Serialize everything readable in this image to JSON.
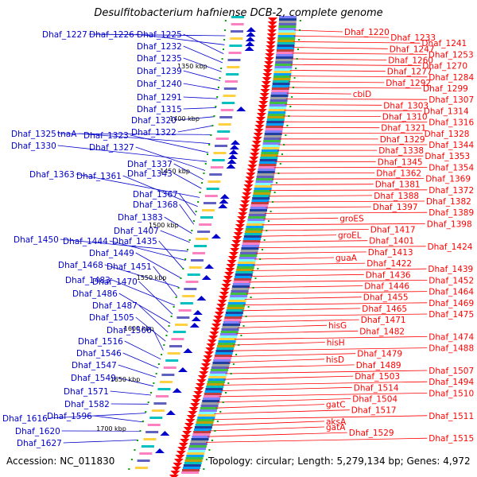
{
  "title": "Desulfitobacterium hafniense DCB-2, complete genome",
  "accession_text": "Accession: NC_011830",
  "topology_text": "Topology: circular; Length: 5,279,134 bp; Genes: 4,972",
  "colors": {
    "left_strand": "#0000cc",
    "right_strand": "#ff0000",
    "backbone": "#808080",
    "tick": "#00a000"
  },
  "kbp_markers": [
    "1350 kbp",
    "1400 kbp",
    "1450 kbp",
    "1500 kbp",
    "1550 kbp",
    "1600 kbp",
    "1650 kbp",
    "1700 kbp"
  ],
  "left_labels": [
    "Dhaf_1227",
    "Dhaf_1226",
    "Dhaf_1225",
    "Dhaf_1232",
    "Dhaf_1235",
    "Dhaf_1239",
    "Dhaf_1240",
    "Dhaf_1291",
    "Dhaf_1315",
    "Dhaf_1320",
    "Dhaf_1322",
    "Dhaf_1325",
    "tnaA",
    "Dhaf_1323",
    "Dhaf_1330",
    "Dhaf_1327",
    "Dhaf_1337",
    "Dhaf_1343",
    "Dhaf_1363",
    "Dhaf_1361",
    "Dhaf_1367",
    "Dhaf_1368",
    "Dhaf_1383",
    "Dhaf_1407",
    "Dhaf_1450",
    "Dhaf_1444",
    "Dhaf_1435",
    "Dhaf_1449",
    "Dhaf_1468",
    "Dhaf_1451",
    "Dhaf_1483",
    "Dhaf_1470",
    "Dhaf_1486",
    "Dhaf_1487",
    "Dhaf_1505",
    "Dhaf_1506",
    "Dhaf_1516",
    "Dhaf_1546",
    "Dhaf_1547",
    "Dhaf_1549",
    "Dhaf_1571",
    "Dhaf_1582",
    "Dhaf_1616",
    "Dhaf_1596",
    "Dhaf_1620",
    "Dhaf_1627"
  ],
  "right_labels": [
    "Dhaf_1220",
    "Dhaf_1233",
    "Dhaf_1241",
    "Dhaf_1247",
    "Dhaf_1253",
    "Dhaf_1260",
    "Dhaf_1270",
    "Dhaf_1277",
    "Dhaf_1284",
    "Dhaf_1292",
    "Dhaf_1299",
    "cbiD",
    "Dhaf_1307",
    "Dhaf_1303",
    "Dhaf_1314",
    "Dhaf_1310",
    "Dhaf_1316",
    "Dhaf_1321",
    "Dhaf_1328",
    "Dhaf_1329",
    "Dhaf_1344",
    "Dhaf_1338",
    "Dhaf_1353",
    "Dhaf_1345",
    "Dhaf_1354",
    "Dhaf_1362",
    "Dhaf_1369",
    "Dhaf_1381",
    "Dhaf_1372",
    "Dhaf_1388",
    "Dhaf_1382",
    "Dhaf_1397",
    "Dhaf_1389",
    "groES",
    "Dhaf_1398",
    "Dhaf_1417",
    "groEL",
    "Dhaf_1401",
    "Dhaf_1424",
    "Dhaf_1413",
    "guaA",
    "Dhaf_1422",
    "Dhaf_1439",
    "Dhaf_1436",
    "Dhaf_1452",
    "Dhaf_1446",
    "Dhaf_1464",
    "Dhaf_1455",
    "Dhaf_1469",
    "Dhaf_1465",
    "Dhaf_1475",
    "Dhaf_1471",
    "hisG",
    "Dhaf_1482",
    "Dhaf_1474",
    "hisH",
    "Dhaf_1488",
    "Dhaf_1479",
    "hisD",
    "Dhaf_1489",
    "Dhaf_1507",
    "Dhaf_1503",
    "Dhaf_1494",
    "Dhaf_1514",
    "Dhaf_1510",
    "Dhaf_1504",
    "gatC",
    "Dhaf_1517",
    "Dhaf_1511",
    "aksA",
    "gatA",
    "Dhaf_1529",
    "Dhaf_1515"
  ]
}
